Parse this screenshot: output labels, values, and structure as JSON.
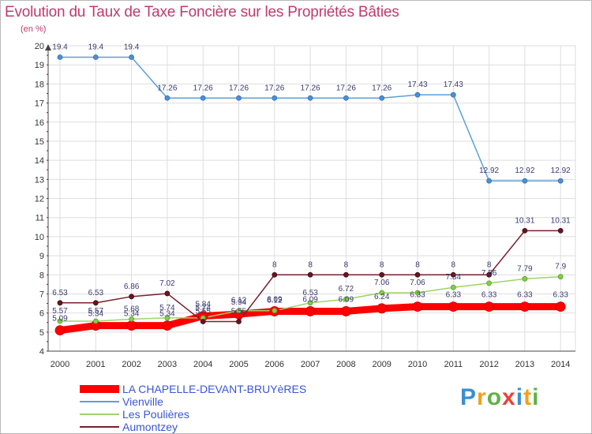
{
  "chart_data": {
    "type": "line",
    "title": "Evolution du Taux de Taxe Foncière sur les Propriétés Bâties",
    "unit": "(en %)",
    "xlabel": "",
    "ylabel": "",
    "ylim": [
      4,
      20
    ],
    "y_ticks": [
      4,
      5,
      6,
      7,
      8,
      9,
      10,
      11,
      12,
      13,
      14,
      15,
      16,
      17,
      18,
      19,
      20
    ],
    "grid": true,
    "legend_position": "bottom-left",
    "categories": [
      "2000",
      "2001",
      "2002",
      "2003",
      "2004",
      "2005",
      "2006",
      "2007",
      "2008",
      "2009",
      "2010",
      "2011",
      "2012",
      "2013",
      "2014"
    ],
    "series": [
      {
        "name": "LA CHAPELLE-DEVANT-BRUYèRES",
        "color": "#ff0000",
        "values": [
          5.09,
          5.34,
          5.34,
          5.34,
          5.84,
          5.94,
          6.09,
          6.09,
          6.09,
          6.24,
          6.33,
          6.33,
          6.33,
          6.33,
          6.33
        ],
        "labels": [
          "5.09",
          "5.34",
          "5.34",
          "5.34",
          "5.84",
          "5.94",
          "6.09",
          "6.09",
          "6.09",
          "6.24",
          "6.33",
          "6.33",
          "6.33",
          "6.33",
          "6.33"
        ]
      },
      {
        "name": "Vienville",
        "color": "#5b9fd6",
        "values": [
          19.4,
          19.4,
          19.4,
          17.26,
          17.26,
          17.26,
          17.26,
          17.26,
          17.26,
          17.26,
          17.43,
          17.43,
          12.92,
          12.92,
          12.92
        ],
        "labels": [
          "19.4",
          "19.4",
          "19.4",
          "17.26",
          "17.26",
          "17.26",
          "17.26",
          "17.26",
          "17.26",
          "17.26",
          "17.43",
          "17.43",
          "12.92",
          "12.92",
          "12.92"
        ]
      },
      {
        "name": "Les Poulières",
        "color": "#9ed36a",
        "values": [
          5.57,
          5.57,
          5.68,
          5.74,
          5.74,
          6.12,
          6.12,
          6.53,
          6.72,
          7.06,
          7.06,
          7.34,
          7.56,
          7.79,
          7.9
        ],
        "labels": [
          "5.57",
          "5.57",
          "5.68",
          "5.74",
          "5.74",
          "6.12",
          "6.12",
          "6.53",
          "6.72",
          "7.06",
          "7.06",
          "7.34",
          "7.56",
          "7.79",
          "7.9"
        ]
      },
      {
        "name": "Aumontzey",
        "color": "#7a1f2e",
        "values": [
          6.53,
          6.53,
          6.86,
          7.02,
          5.55,
          5.55,
          8,
          8,
          8,
          8,
          8,
          8,
          8,
          10.31,
          10.31
        ],
        "labels": [
          "6.53",
          "6.53",
          "6.86",
          "7.02",
          "5.55",
          "5.55",
          "8",
          "8",
          "8",
          "8",
          "8",
          "8",
          "8",
          "10.31",
          "10.31"
        ]
      }
    ]
  },
  "brand": {
    "letters": [
      "P",
      "r",
      "o",
      "x",
      "i",
      "t",
      "i"
    ],
    "colors": [
      "#3c8fd0",
      "#f0a21d",
      "#5fb246",
      "#e8423b",
      "#3c8fd0",
      "#f0a21d",
      "#5fb246"
    ]
  }
}
